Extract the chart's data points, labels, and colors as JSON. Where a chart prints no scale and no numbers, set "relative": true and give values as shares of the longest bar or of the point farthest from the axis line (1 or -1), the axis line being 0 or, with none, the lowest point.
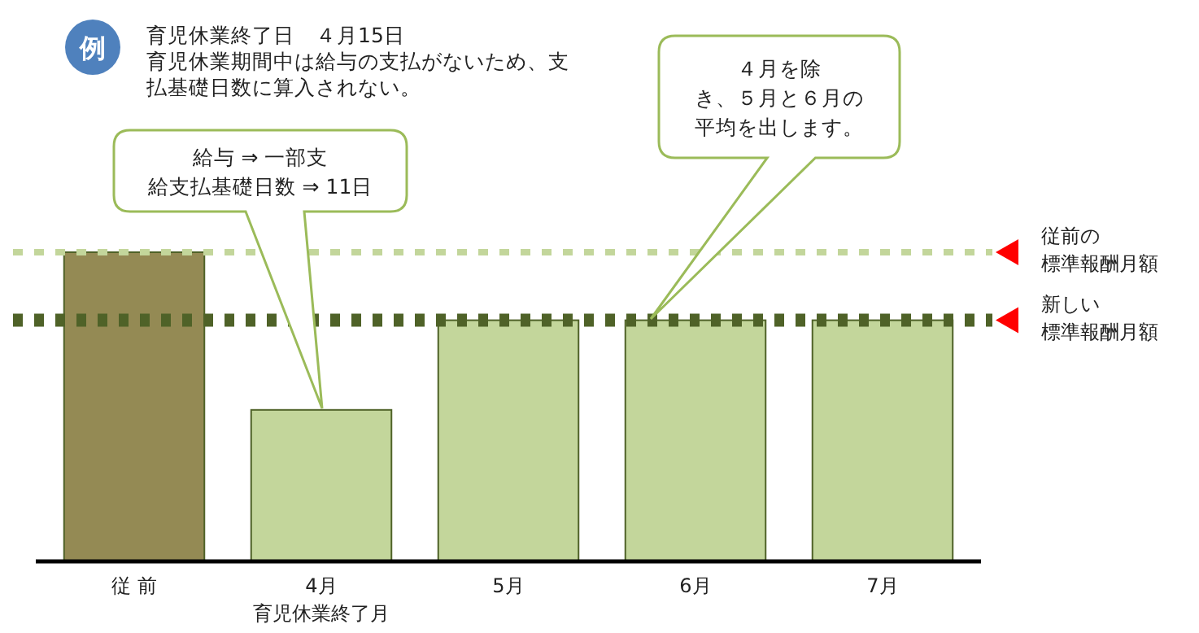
{
  "chart_data": {
    "type": "bar",
    "relative": true,
    "title": "例",
    "subtitle": "育児休業終了日　４月15日",
    "categories": [
      "従 前",
      "4月",
      "5月",
      "6月",
      "7月"
    ],
    "values": [
      1,
      0.49,
      0.78,
      0.78,
      0.78
    ],
    "colors": [
      "#948a54",
      "#c3d69b",
      "#c3d69b",
      "#c3d69b",
      "#c3d69b"
    ],
    "ref_lines": [
      {
        "axis": "y",
        "value": 1,
        "label": "従前の標準報酬月額",
        "color": "#c3d69b",
        "line_style": "dotted"
      },
      {
        "axis": "y",
        "value": 0.78,
        "label": "新しい標準報酬月額",
        "color": "#4f6228",
        "line_style": "dotted"
      }
    ],
    "annotations": [
      "育児休業期間中は給与の支払がないため、支払基礎日数に算入されない。",
      "給与 ⇒ 一部支給支払基礎日数 ⇒ 11日",
      "４月を除き、５月と６月の平均を出します。",
      "育児休業終了月"
    ],
    "grid": false
  }
}
